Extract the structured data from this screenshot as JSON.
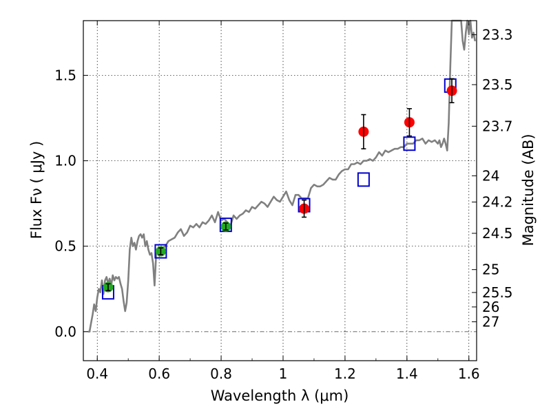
{
  "chart_data": {
    "type": "scatter",
    "title": "",
    "xlabel": "Wavelength  λ (μm)",
    "ylabel": "Flux  Fν  ( μJy )",
    "ylabel_right": "Magnitude (AB)",
    "xlim": [
      0.355,
      1.625
    ],
    "ylim": [
      -0.17,
      1.82
    ],
    "x_ticks": [
      0.4,
      0.6,
      0.8,
      1.0,
      1.2,
      1.4,
      1.6
    ],
    "x_tick_labels": [
      "0.4",
      "0.6",
      "0.8",
      "1",
      "1.2",
      "1.4",
      "1.6"
    ],
    "y_ticks": [
      0.0,
      0.5,
      1.0,
      1.5
    ],
    "y_tick_labels": [
      "0.0",
      "0.5",
      "1.0",
      "1.5"
    ],
    "right_ticks": [
      "23.3",
      "23.5",
      "23.7",
      "24",
      "24.2",
      "24.5",
      "25",
      "25.5",
      "26",
      "27"
    ],
    "grid": true,
    "series": [
      {
        "kind": "model_spectrum",
        "color": "#808080",
        "x": [
          0.37,
          0.375,
          0.38,
          0.385,
          0.39,
          0.395,
          0.4,
          0.405,
          0.41,
          0.415,
          0.42,
          0.425,
          0.43,
          0.435,
          0.44,
          0.445,
          0.45,
          0.455,
          0.46,
          0.465,
          0.47,
          0.475,
          0.48,
          0.485,
          0.49,
          0.495,
          0.5,
          0.505,
          0.51,
          0.515,
          0.52,
          0.525,
          0.53,
          0.535,
          0.54,
          0.545,
          0.55,
          0.555,
          0.56,
          0.565,
          0.57,
          0.575,
          0.58,
          0.585,
          0.59,
          0.6,
          0.61,
          0.62,
          0.63,
          0.64,
          0.65,
          0.66,
          0.67,
          0.68,
          0.69,
          0.7,
          0.71,
          0.72,
          0.73,
          0.74,
          0.75,
          0.76,
          0.77,
          0.78,
          0.79,
          0.8,
          0.81,
          0.82,
          0.83,
          0.84,
          0.85,
          0.86,
          0.87,
          0.88,
          0.89,
          0.9,
          0.91,
          0.92,
          0.93,
          0.94,
          0.95,
          0.96,
          0.97,
          0.98,
          0.99,
          1.0,
          1.01,
          1.02,
          1.03,
          1.04,
          1.05,
          1.06,
          1.07,
          1.08,
          1.09,
          1.1,
          1.11,
          1.12,
          1.13,
          1.14,
          1.15,
          1.16,
          1.17,
          1.18,
          1.19,
          1.2,
          1.21,
          1.22,
          1.23,
          1.24,
          1.25,
          1.26,
          1.27,
          1.28,
          1.29,
          1.3,
          1.31,
          1.32,
          1.33,
          1.34,
          1.35,
          1.36,
          1.37,
          1.38,
          1.39,
          1.4,
          1.41,
          1.42,
          1.43,
          1.44,
          1.45,
          1.46,
          1.47,
          1.48,
          1.49,
          1.5,
          1.505,
          1.51,
          1.515,
          1.52,
          1.525,
          1.53,
          1.535,
          1.54,
          1.545,
          1.55,
          1.555,
          1.56,
          1.565,
          1.57,
          1.575,
          1.58,
          1.585,
          1.59,
          1.595,
          1.6,
          1.605,
          1.61,
          1.615,
          1.62
        ],
        "y": [
          0.0,
          0.0,
          0.05,
          0.1,
          0.16,
          0.12,
          0.2,
          0.25,
          0.23,
          0.3,
          0.22,
          0.3,
          0.32,
          0.28,
          0.31,
          0.27,
          0.33,
          0.3,
          0.32,
          0.31,
          0.32,
          0.28,
          0.25,
          0.18,
          0.12,
          0.17,
          0.3,
          0.48,
          0.55,
          0.5,
          0.52,
          0.48,
          0.53,
          0.56,
          0.57,
          0.55,
          0.57,
          0.5,
          0.53,
          0.48,
          0.45,
          0.46,
          0.4,
          0.27,
          0.45,
          0.48,
          0.49,
          0.5,
          0.53,
          0.54,
          0.55,
          0.58,
          0.6,
          0.56,
          0.58,
          0.62,
          0.61,
          0.63,
          0.61,
          0.64,
          0.63,
          0.65,
          0.68,
          0.64,
          0.7,
          0.65,
          0.66,
          0.64,
          0.62,
          0.68,
          0.66,
          0.68,
          0.69,
          0.71,
          0.7,
          0.73,
          0.72,
          0.74,
          0.76,
          0.75,
          0.73,
          0.76,
          0.79,
          0.77,
          0.76,
          0.79,
          0.82,
          0.77,
          0.74,
          0.8,
          0.8,
          0.78,
          0.78,
          0.78,
          0.84,
          0.86,
          0.85,
          0.85,
          0.86,
          0.88,
          0.9,
          0.89,
          0.89,
          0.92,
          0.94,
          0.95,
          0.95,
          0.98,
          0.98,
          0.99,
          0.98,
          1.0,
          1.0,
          1.01,
          1.0,
          1.02,
          1.05,
          1.03,
          1.06,
          1.05,
          1.06,
          1.07,
          1.07,
          1.08,
          1.08,
          1.1,
          1.1,
          1.1,
          1.12,
          1.12,
          1.13,
          1.1,
          1.12,
          1.11,
          1.12,
          1.1,
          1.12,
          1.08,
          1.1,
          1.13,
          1.1,
          1.06,
          1.22,
          1.55,
          1.82,
          1.82,
          1.82,
          1.82,
          1.82,
          1.82,
          1.82,
          1.7,
          1.65,
          1.75,
          1.82,
          1.74,
          1.82,
          1.72,
          1.75,
          1.7
        ]
      },
      {
        "kind": "model_photometry",
        "marker": "open-square",
        "color": "#0000cc",
        "x": [
          0.435,
          0.605,
          0.815,
          1.068,
          1.26,
          1.408,
          1.54
        ],
        "y": [
          0.23,
          0.47,
          0.625,
          0.74,
          0.89,
          1.1,
          1.44
        ]
      },
      {
        "kind": "observed",
        "marker": "filled-circle",
        "color": "#22aa22",
        "x": [
          0.435,
          0.605,
          0.815
        ],
        "y": [
          0.26,
          0.47,
          0.615
        ],
        "yerr": [
          0.02,
          0.02,
          0.02
        ]
      },
      {
        "kind": "observed",
        "marker": "filled-circle",
        "color": "#ff0000",
        "x": [
          1.068,
          1.26,
          1.408,
          1.545
        ],
        "y": [
          0.72,
          1.17,
          1.225,
          1.41
        ],
        "yerr": [
          0.05,
          0.1,
          0.08,
          0.07
        ]
      }
    ],
    "zero_line": {
      "y": 0.0,
      "style": "dash-dot"
    }
  }
}
